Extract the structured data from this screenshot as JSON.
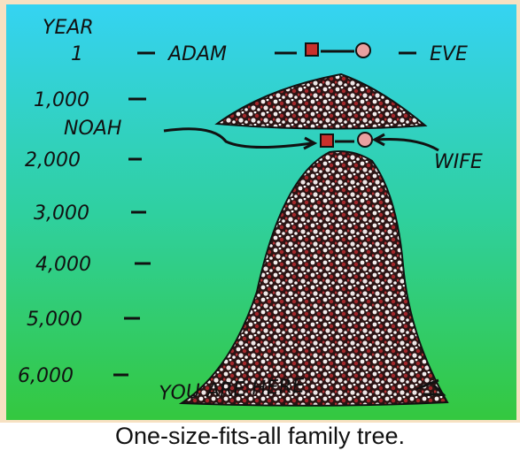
{
  "cartoon": {
    "year_heading": "YEAR",
    "years": [
      "1",
      "1,000",
      "2,000",
      "3,000",
      "4,000",
      "5,000",
      "6,000"
    ],
    "labels": {
      "adam": "ADAM",
      "eve": "EVE",
      "noah": "NOAH",
      "wife": "WIFE",
      "you_are_here": "YOU ARE HERE"
    }
  },
  "caption": "One-size-fits-all family tree."
}
